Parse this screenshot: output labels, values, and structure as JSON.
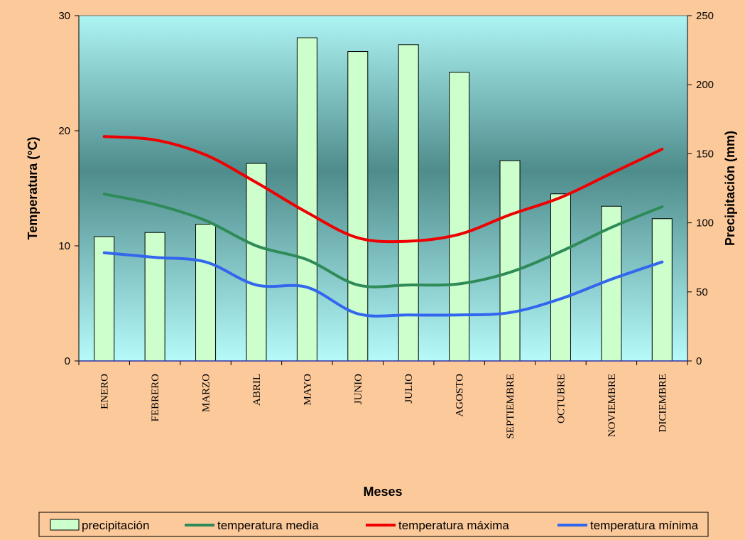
{
  "chart_data": {
    "type": "bar+line",
    "title": "",
    "xlabel": "Meses",
    "ylabel_left": "Temperatura (°C)",
    "ylabel_right": "Precipitación (mm)",
    "ylim_left": [
      0,
      30
    ],
    "ylim_right": [
      0,
      250
    ],
    "yticks_left": [
      0,
      10,
      20,
      30
    ],
    "yticks_right": [
      0,
      50,
      100,
      150,
      200,
      250
    ],
    "categories": [
      "ENERO",
      "FEBRERO",
      "MARZO",
      "ABRIL",
      "MAYO",
      "JUNIO",
      "JULIO",
      "AGOSTO",
      "SEPTIEMBRE",
      "OCTUBRE",
      "NOVIEMBRE",
      "DICIEMBRE"
    ],
    "bars": {
      "name": "precipitación",
      "axis": "right",
      "color": "#ccffcc",
      "values": [
        90,
        93,
        99,
        143,
        234,
        224,
        229,
        209,
        145,
        121,
        112,
        103
      ]
    },
    "series": [
      {
        "name": "temperatura media",
        "axis": "left",
        "color": "#2e8b57",
        "values": [
          14.5,
          13.6,
          12.2,
          10.0,
          8.8,
          6.6,
          6.6,
          6.7,
          7.7,
          9.5,
          11.6,
          13.4
        ]
      },
      {
        "name": "temperatura máxima",
        "axis": "left",
        "color": "#ee0000",
        "values": [
          19.5,
          19.2,
          17.9,
          15.5,
          12.9,
          10.7,
          10.4,
          11.0,
          12.7,
          14.2,
          16.3,
          18.4
        ]
      },
      {
        "name": "temperatura mínima",
        "axis": "left",
        "color": "#3366ee",
        "values": [
          9.4,
          9.0,
          8.6,
          6.6,
          6.4,
          4.1,
          4.0,
          4.0,
          4.2,
          5.4,
          7.1,
          8.6
        ]
      }
    ],
    "legend_position": "bottom"
  }
}
